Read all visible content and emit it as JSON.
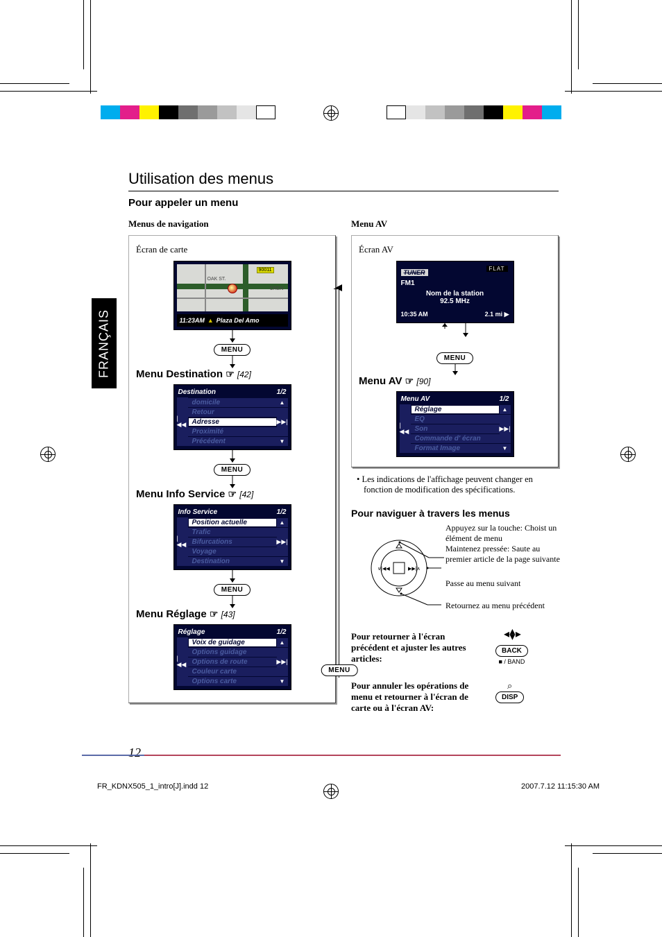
{
  "title": "Utilisation des menus",
  "sub_heading": "Pour appeler un menu",
  "left_label": "Menus de navigation",
  "right_label": "Menu AV",
  "ecran_carte": "Écran de carte",
  "ecran_av": "Écran AV",
  "lang_tab": "FRANÇAIS",
  "page_num": "12",
  "footer_left": "FR_KDNX505_1_intro[J].indd   12",
  "footer_right": "2007.7.12   11:15:30 AM",
  "menu_label": "MENU",
  "map_status_time": "11:23AM",
  "map_status_place": "Plaza Del Amo",
  "sections": {
    "dest": {
      "title": "Menu Destination",
      "ref": "[42]",
      "header": "Destination",
      "page": "1/2",
      "items": [
        "domicile",
        "Retour",
        "Adresse",
        "Proximité",
        "Précédent"
      ],
      "selected": 2
    },
    "info": {
      "title": "Menu Info Service",
      "ref": "[42]",
      "header": "Info Service",
      "page": "1/2",
      "items": [
        "Position actuelle",
        "Trafic",
        "Bifurcations",
        "Voyage",
        "Destination"
      ],
      "selected": 0
    },
    "reglage": {
      "title": "Menu Réglage",
      "ref": "[43]",
      "header": "Réglage",
      "page": "1/2",
      "items": [
        "Voix de guidage",
        "Options guidage",
        "Options de route",
        "Couleur carte",
        "Options carte"
      ],
      "selected": 0
    },
    "av": {
      "title": "Menu AV",
      "ref": "[90]",
      "header": "Menu AV",
      "page": "1/2",
      "items": [
        "Réglage",
        "EQ",
        "Son",
        "Commande d' écran",
        "Format Image"
      ],
      "selected": 0
    }
  },
  "av_screen": {
    "tuner": "TUNER",
    "flat": "FLAT",
    "band": "FM1",
    "station_lbl": "Nom de la station",
    "freq": "92.5   MHz",
    "time": "10:35 AM",
    "dist": "2.1 mi"
  },
  "bullet": "Les indications de l'affichage peuvent changer en fonction de modification des spécifications.",
  "nav_heading": "Pour naviguer à travers les menus",
  "annot1a": "Appuyez sur la touche: Choist un élément de menu",
  "annot1b": "Maintenez pressée: Saute au premier article de la page suivante",
  "annot2": "Passe au menu suivant",
  "annot3": "Retournez au menu précédent",
  "ret_text": "Pour retourner à l'écran précédent et ajuster les autres articles:",
  "cancel_text": "Pour annuler les opérations de menu et retourner à l'écran de carte ou à l'écran AV:",
  "back_btn": "BACK",
  "back_sub": "■ / BAND",
  "disp_btn": "DISP",
  "colors": {
    "nav_bg": "#030731",
    "nav_item": "#1a1e5e",
    "nav_dim": "#4a5b9f",
    "map_bg": "#d9dad6",
    "rule_blue": "#5a6aa8",
    "rule_red": "#b4445a"
  },
  "colorbar_left": [
    "#00adee",
    "#e31e8a",
    "#fff200",
    "#000000",
    "#6f6f6f",
    "#9a9a9a",
    "#c2c2c2",
    "#e5e5e5",
    "#ffffff"
  ],
  "colorbar_right": [
    "#ffffff",
    "#e5e5e5",
    "#c2c2c2",
    "#9a9a9a",
    "#6f6f6f",
    "#000000",
    "#fff200",
    "#e31e8a",
    "#00adee"
  ]
}
